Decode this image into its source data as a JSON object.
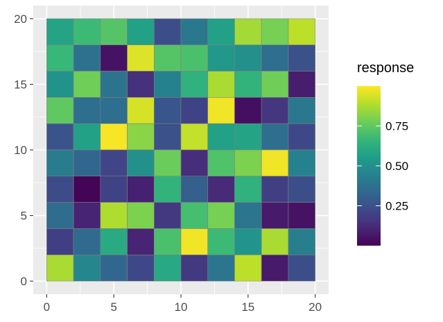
{
  "chart_data": {
    "type": "heatmap",
    "title": "",
    "xlabel": "",
    "ylabel": "",
    "xlim": [
      -1,
      21
    ],
    "ylim": [
      -1,
      21
    ],
    "x_ticks": [
      0,
      5,
      10,
      15,
      20
    ],
    "y_ticks": [
      0,
      5,
      10,
      15,
      20
    ],
    "x_tick_labels": [
      "0",
      "5",
      "10",
      "15",
      "20"
    ],
    "y_tick_labels": [
      "0",
      "5",
      "10",
      "15",
      "20"
    ],
    "cell_size": 2,
    "x_centers": [
      1,
      3,
      5,
      7,
      9,
      11,
      13,
      15,
      17,
      19
    ],
    "y_centers": [
      19,
      17,
      15,
      13,
      11,
      9,
      7,
      5,
      3,
      1
    ],
    "values": [
      [
        0.58,
        0.68,
        0.73,
        0.57,
        0.24,
        0.4,
        0.57,
        0.86,
        0.79,
        0.9
      ],
      [
        0.67,
        0.37,
        0.05,
        0.95,
        0.73,
        0.71,
        0.53,
        0.5,
        0.36,
        0.25
      ],
      [
        0.51,
        0.78,
        0.38,
        0.14,
        0.44,
        0.64,
        0.87,
        0.65,
        0.78,
        0.08
      ],
      [
        0.75,
        0.36,
        0.36,
        0.94,
        0.27,
        0.2,
        0.98,
        0.04,
        0.16,
        0.4
      ],
      [
        0.26,
        0.57,
        0.99,
        0.82,
        0.25,
        0.91,
        0.57,
        0.58,
        0.36,
        0.22
      ],
      [
        0.42,
        0.33,
        0.21,
        0.5,
        0.77,
        0.13,
        0.72,
        0.8,
        0.98,
        0.44
      ],
      [
        0.23,
        0.01,
        0.2,
        0.09,
        0.65,
        0.3,
        0.12,
        0.64,
        0.19,
        0.24
      ],
      [
        0.35,
        0.1,
        0.88,
        0.8,
        0.17,
        0.7,
        0.79,
        0.39,
        0.07,
        0.05
      ],
      [
        0.19,
        0.34,
        0.61,
        0.1,
        0.71,
        0.98,
        0.68,
        0.52,
        0.87,
        0.43
      ],
      [
        0.87,
        0.46,
        0.33,
        0.22,
        0.6,
        0.17,
        0.39,
        0.9,
        0.07,
        0.24
      ]
    ],
    "colorscale": "viridis",
    "panel_background": "#ebebeb",
    "gridline_color": "#ffffff",
    "cell_border_color": "#808080",
    "grid": true,
    "legend": {
      "title": "response",
      "placement": "right",
      "range": [
        0,
        1
      ],
      "breaks": [
        0.75,
        0.5,
        0.25
      ],
      "labels": [
        "0.75",
        "0.50",
        "0.25"
      ]
    }
  }
}
